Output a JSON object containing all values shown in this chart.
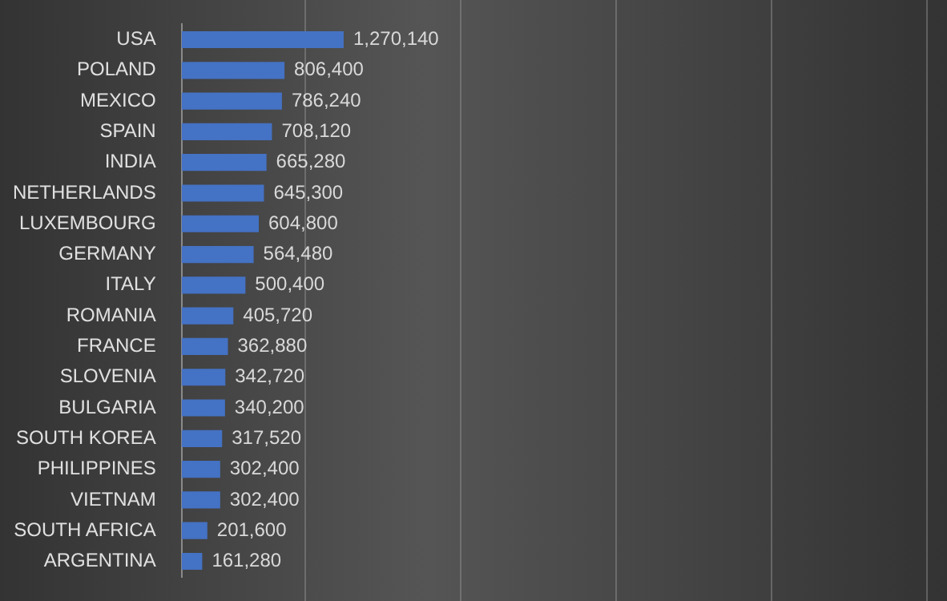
{
  "chart_data": {
    "type": "bar",
    "orientation": "horizontal",
    "categories": [
      "USA",
      "POLAND",
      "MEXICO",
      "SPAIN",
      "INDIA",
      "NETHERLANDS",
      "LUXEMBOURG",
      "GERMANY",
      "ITALY",
      "ROMANIA",
      "FRANCE",
      "SLOVENIA",
      "BULGARIA",
      "SOUTH KOREA",
      "PHILIPPINES",
      "VIETNAM",
      "SOUTH AFRICA",
      "ARGENTINA"
    ],
    "values": [
      1270140,
      806400,
      786240,
      708120,
      665280,
      645300,
      604800,
      564480,
      500400,
      405720,
      362880,
      342720,
      340200,
      317520,
      302400,
      302400,
      201600,
      161280
    ],
    "value_labels": [
      "1,270,140",
      "806,400",
      "786,240",
      "708,120",
      "665,280",
      "645,300",
      "604,800",
      "564,480",
      "500,400",
      "405,720",
      "362,880",
      "342,720",
      "340,200",
      "317,520",
      "302,400",
      "302,400",
      "201,600",
      "161,280"
    ],
    "color": "#4472c4",
    "tick_labels": "y"
  }
}
